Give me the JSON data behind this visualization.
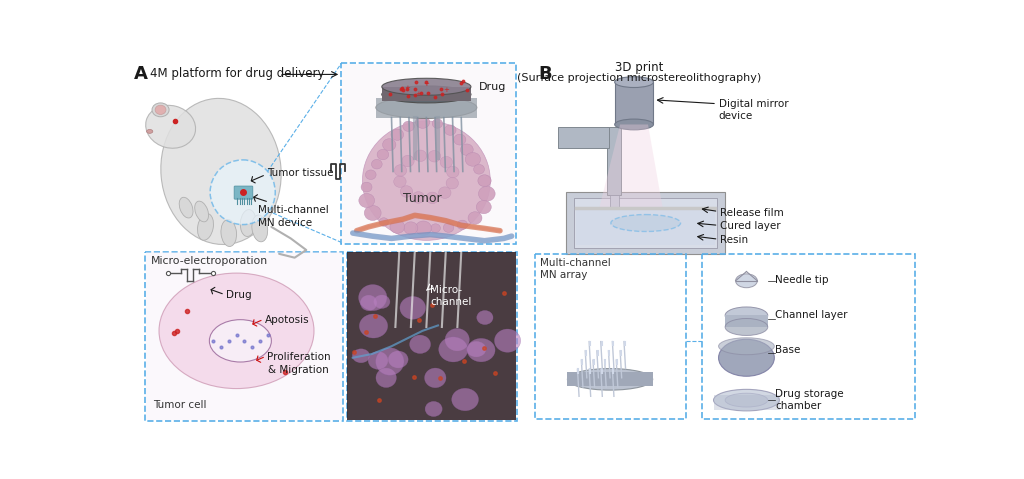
{
  "figure_width": 10.24,
  "figure_height": 4.79,
  "dpi": 100,
  "bg_color": "#ffffff",
  "panel_A_label": "A",
  "panel_B_label": "B",
  "panel_A_title": "4M platform for drug delivery",
  "panel_B_title_line1": "3D print",
  "panel_B_title_line2": "(Surface projection microstereolithography)",
  "label_tumor_tissue": "Tumor tissue",
  "label_mn_device": "Multi-channel\nMN device",
  "label_tumor": "Tumor",
  "label_drug_A": "Drug",
  "label_micro_title": "Micro-electroporation",
  "label_micro_drug": "Drug",
  "label_apoptosis": "Apotosis",
  "label_prolif": "Proliferation\n& Migration",
  "label_tumor_cell": "Tumor cell",
  "label_micro_channel": "Micro-\nchannel",
  "label_digital": "Digital mirror\ndevice",
  "label_release": "Release film",
  "label_cured": "Cured layer",
  "label_resin": "Resin",
  "label_mn_array": "Multi-channel\nMN array",
  "label_needle_tip": "Needle tip",
  "label_channel_layer": "Channel layer",
  "label_base": "Base",
  "label_drug_storage": "Drug storage\nchamber",
  "dash_color": "#5aafe8",
  "arrow_color": "#1a1a1a",
  "text_color": "#1a1a1a",
  "red_arrow_color": "#cc1111",
  "white_color": "#ffffff",
  "light_pink": "#e8c8d8",
  "light_blue": "#c0d8f0",
  "gray_light": "#d0d4da",
  "gray_med": "#a8b0bb",
  "tumor_pink": "#d4a8c8",
  "tumor_bg": "#f0e0f0",
  "box_fill_A_top": "#f5f0f8",
  "box_fill_micro": "#f8e8f0",
  "box_fill_channel": "#302020"
}
